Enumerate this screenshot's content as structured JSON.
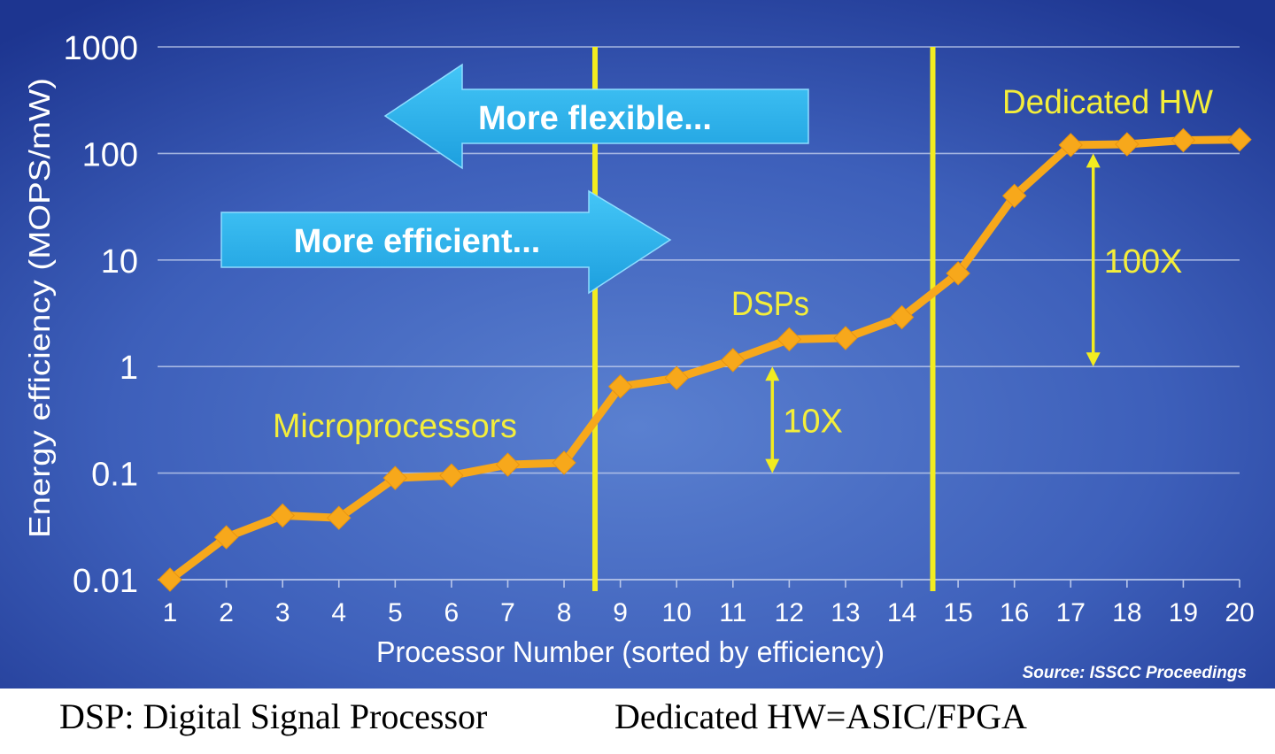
{
  "chart_data": {
    "type": "line",
    "title": "",
    "xlabel": "Processor Number (sorted by efficiency)",
    "ylabel": "Energy efficiency (MOPS/mW)",
    "yscale": "log",
    "ylim": [
      0.01,
      1000
    ],
    "xlim": [
      1,
      20
    ],
    "y_ticks": [
      "0.01",
      "0.1",
      "1",
      "10",
      "100",
      "1000"
    ],
    "x_ticks": [
      "1",
      "2",
      "3",
      "4",
      "5",
      "6",
      "7",
      "8",
      "9",
      "10",
      "11",
      "12",
      "13",
      "14",
      "15",
      "16",
      "17",
      "18",
      "19",
      "20"
    ],
    "grid": "horizontal",
    "x": [
      1,
      2,
      3,
      4,
      5,
      6,
      7,
      8,
      9,
      10,
      11,
      12,
      13,
      14,
      15,
      16,
      17,
      18,
      19,
      20
    ],
    "series": [
      {
        "values": [
          0.01,
          0.025,
          0.04,
          0.038,
          0.09,
          0.095,
          0.12,
          0.125,
          0.65,
          0.78,
          1.15,
          1.8,
          1.85,
          2.9,
          7.5,
          40,
          120,
          122,
          133,
          135
        ]
      }
    ],
    "dividers_x": [
      8.55,
      14.55
    ],
    "region_labels": [
      {
        "text": "Microprocessors"
      },
      {
        "text": "DSPs"
      },
      {
        "text": "Dedicated HW"
      }
    ],
    "ratio_annotations": [
      {
        "text": "10X",
        "x": 11.7,
        "from": 0.1,
        "to": 1
      },
      {
        "text": "100X",
        "x": 17.4,
        "from": 1,
        "to": 100
      }
    ],
    "arrows": [
      {
        "text": "More flexible...",
        "direction": "left"
      },
      {
        "text": "More efficient...",
        "direction": "right"
      }
    ],
    "source": "Source: ISSCC Proceedings",
    "colors": {
      "background_top": "#223d9a",
      "background_center": "#4f74c8",
      "series": "#f7a81b",
      "divider": "#f2ec20",
      "label_yellow": "#f4ee3a",
      "arrow": "#25b1ec",
      "grid": "#b9c7ea"
    }
  },
  "caption": {
    "left": "DSP: Digital Signal Processor",
    "right": "Dedicated HW=ASIC/FPGA"
  }
}
